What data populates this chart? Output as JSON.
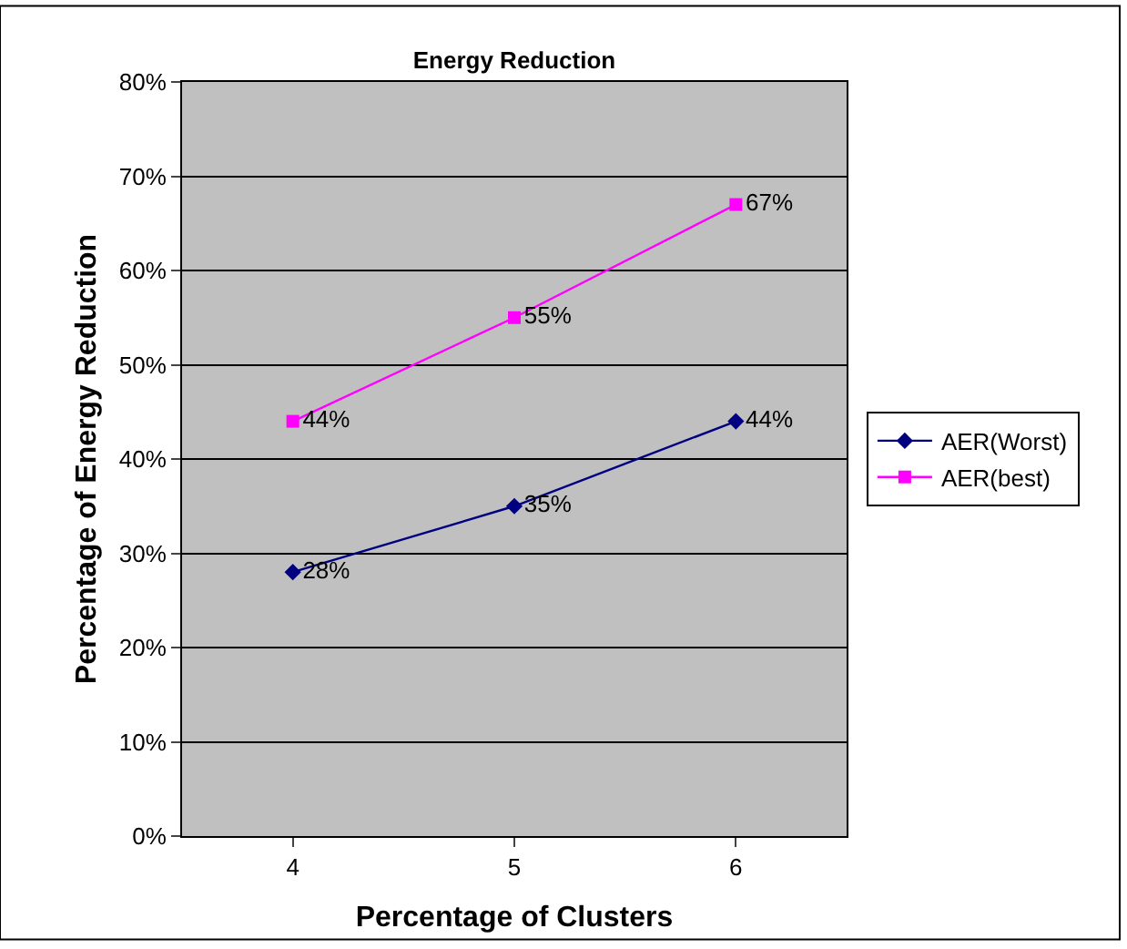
{
  "chart_data": {
    "type": "line",
    "title": "Energy Reduction",
    "xlabel": "Percentage of Clusters",
    "ylabel": "Percentage of Energy Reduction",
    "categories": [
      "4",
      "5",
      "6"
    ],
    "series": [
      {
        "name": "AER(Worst)",
        "color": "#000080",
        "marker": "diamond",
        "values": [
          28,
          35,
          44
        ],
        "value_labels": [
          "28%",
          "35%",
          "44%"
        ]
      },
      {
        "name": "AER(best)",
        "color": "#ff00ff",
        "marker": "square",
        "values": [
          44,
          55,
          67
        ],
        "value_labels": [
          "44%",
          "55%",
          "67%"
        ]
      }
    ],
    "ylim": [
      0,
      80
    ],
    "yticks": [
      {
        "value": 0,
        "label": "0%"
      },
      {
        "value": 10,
        "label": "10%"
      },
      {
        "value": 20,
        "label": "20%"
      },
      {
        "value": 30,
        "label": "30%"
      },
      {
        "value": 40,
        "label": "40%"
      },
      {
        "value": 50,
        "label": "50%"
      },
      {
        "value": 60,
        "label": "60%"
      },
      {
        "value": 70,
        "label": "70%"
      },
      {
        "value": 80,
        "label": "80%"
      }
    ],
    "grid": "y",
    "legend": "right",
    "line_style": "solid"
  }
}
